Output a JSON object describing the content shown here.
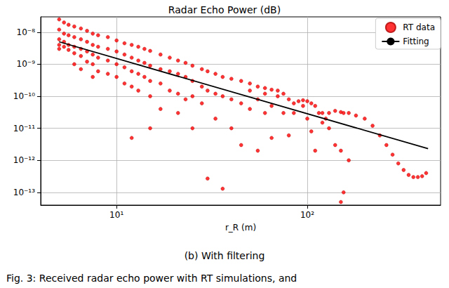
{
  "chart_data": {
    "type": "scatter",
    "title": "Radar Echo Power (dB)",
    "subtitle": "(b) With filtering",
    "caption": "Fig. 3: Received radar echo power with RT simulations, and",
    "x_label": "r_R (m)",
    "log": true,
    "grid": true,
    "legend": "upper right",
    "xlim": [
      4,
      500
    ],
    "ylim": [
      4e-14,
      3e-08
    ],
    "xticks": [
      {
        "value": 10,
        "label": "10¹"
      },
      {
        "value": 100,
        "label": "10²"
      }
    ],
    "yticks": [
      {
        "value": 1e-13,
        "label": "10⁻¹³"
      },
      {
        "value": 1e-12,
        "label": "10⁻¹²"
      },
      {
        "value": 1e-11,
        "label": "10⁻¹¹"
      },
      {
        "value": 1e-10,
        "label": "10⁻¹⁰"
      },
      {
        "value": 1e-09,
        "label": "10⁻⁹"
      },
      {
        "value": 1e-08,
        "label": "10⁻⁸"
      }
    ],
    "series": [
      {
        "name": "RT data",
        "type": "scatter",
        "marker": "circle",
        "color": "#ff0000",
        "x": [
          5,
          5,
          5,
          5,
          5,
          5.3,
          5.3,
          5.3,
          5.3,
          5.6,
          5.6,
          5.6,
          5.6,
          6,
          6,
          6,
          6,
          6,
          6.5,
          6.5,
          6.5,
          6.5,
          6.5,
          7,
          7,
          7,
          7,
          7.5,
          7.5,
          7.5,
          7.5,
          7.5,
          8,
          8,
          8,
          8,
          9,
          9,
          9,
          9,
          10,
          10,
          10,
          10,
          11,
          11,
          11,
          11,
          12,
          12,
          12,
          12,
          12,
          13,
          13,
          13,
          13,
          14,
          14,
          14,
          15,
          15,
          15,
          15,
          15,
          17,
          17,
          17,
          17,
          19,
          19,
          19,
          21,
          21,
          21,
          21,
          23,
          23,
          23,
          25,
          25,
          25,
          25,
          28,
          28,
          28,
          30,
          30,
          30,
          33,
          33,
          33,
          36,
          36,
          36,
          40,
          40,
          40,
          45,
          45,
          45,
          50,
          50,
          50,
          55,
          55,
          55,
          60,
          60,
          60,
          65,
          65,
          65,
          70,
          70,
          75,
          75,
          80,
          80,
          85,
          85,
          90,
          95,
          95,
          100,
          100,
          105,
          105,
          110,
          110,
          115,
          120,
          120,
          125,
          130,
          130,
          140,
          140,
          150,
          150,
          150,
          155,
          155,
          165,
          165,
          180,
          200,
          220,
          240,
          260,
          280,
          300,
          320,
          340,
          360,
          380,
          400,
          420
        ],
        "values": [
          2.5e-08,
          1.2e-08,
          6e-09,
          4e-09,
          3e-09,
          2e-08,
          9e-09,
          5e-09,
          3.5e-09,
          1.7e-08,
          8e-09,
          4e-09,
          2.8e-09,
          1.5e-08,
          7e-09,
          3.5e-09,
          2.2e-09,
          1e-09,
          1.3e-08,
          6e-09,
          3e-09,
          1.8e-09,
          7e-10,
          1.1e-08,
          5e-09,
          2.5e-09,
          1.2e-09,
          9e-09,
          4e-09,
          2e-09,
          1e-09,
          4e-10,
          8e-09,
          3.5e-09,
          1.6e-09,
          6e-10,
          7e-09,
          3e-09,
          1.3e-09,
          5e-10,
          5.5e-09,
          2.5e-09,
          1e-09,
          4e-10,
          4.5e-09,
          2e-09,
          8e-10,
          2.5e-10,
          4e-09,
          1.6e-09,
          6e-10,
          2e-10,
          5e-12,
          3.5e-09,
          1.3e-09,
          5e-10,
          1.5e-10,
          3e-09,
          1.1e-09,
          4e-10,
          2.6e-09,
          9e-10,
          3e-10,
          1e-10,
          1e-11,
          2e-09,
          7e-10,
          2.5e-10,
          4e-11,
          1.6e-09,
          6e-10,
          1.5e-10,
          1.3e-09,
          5e-10,
          1.2e-10,
          3e-11,
          1.1e-09,
          4e-10,
          8e-11,
          9e-10,
          3e-10,
          1e-10,
          1e-11,
          7e-10,
          2e-10,
          6e-11,
          6e-10,
          1.5e-10,
          2.7e-13,
          5e-10,
          1.2e-10,
          2e-11,
          4e-10,
          1e-10,
          1.3e-13,
          3.5e-10,
          8e-11,
          1e-11,
          3e-10,
          6e-11,
          3e-12,
          2.5e-10,
          1.5e-10,
          4e-11,
          2e-10,
          8e-11,
          2e-12,
          1.8e-10,
          1.2e-10,
          3e-11,
          1.6e-10,
          5e-11,
          5e-12,
          1.5e-10,
          1e-10,
          1.2e-10,
          3e-11,
          8e-11,
          6e-12,
          6e-11,
          3e-11,
          7e-11,
          7.5e-11,
          5e-11,
          7e-11,
          2e-11,
          6e-11,
          8e-12,
          5e-11,
          2e-12,
          3e-11,
          1.5e-11,
          3e-11,
          2e-11,
          3e-11,
          1e-11,
          3.5e-11,
          3e-12,
          3.2e-11,
          5e-14,
          2e-12,
          3e-11,
          1e-13,
          3e-11,
          1e-12,
          2.5e-11,
          2e-11,
          1.2e-11,
          6e-12,
          3e-12,
          1.5e-12,
          8e-13,
          5e-13,
          3.5e-13,
          3e-13,
          3e-13,
          3.2e-13,
          4e-13
        ]
      },
      {
        "name": "Fitting",
        "type": "line",
        "line_style": "solid",
        "color": "#000000",
        "x": [
          5,
          430
        ],
        "values": [
          5e-09,
          2.3e-12
        ]
      }
    ]
  }
}
